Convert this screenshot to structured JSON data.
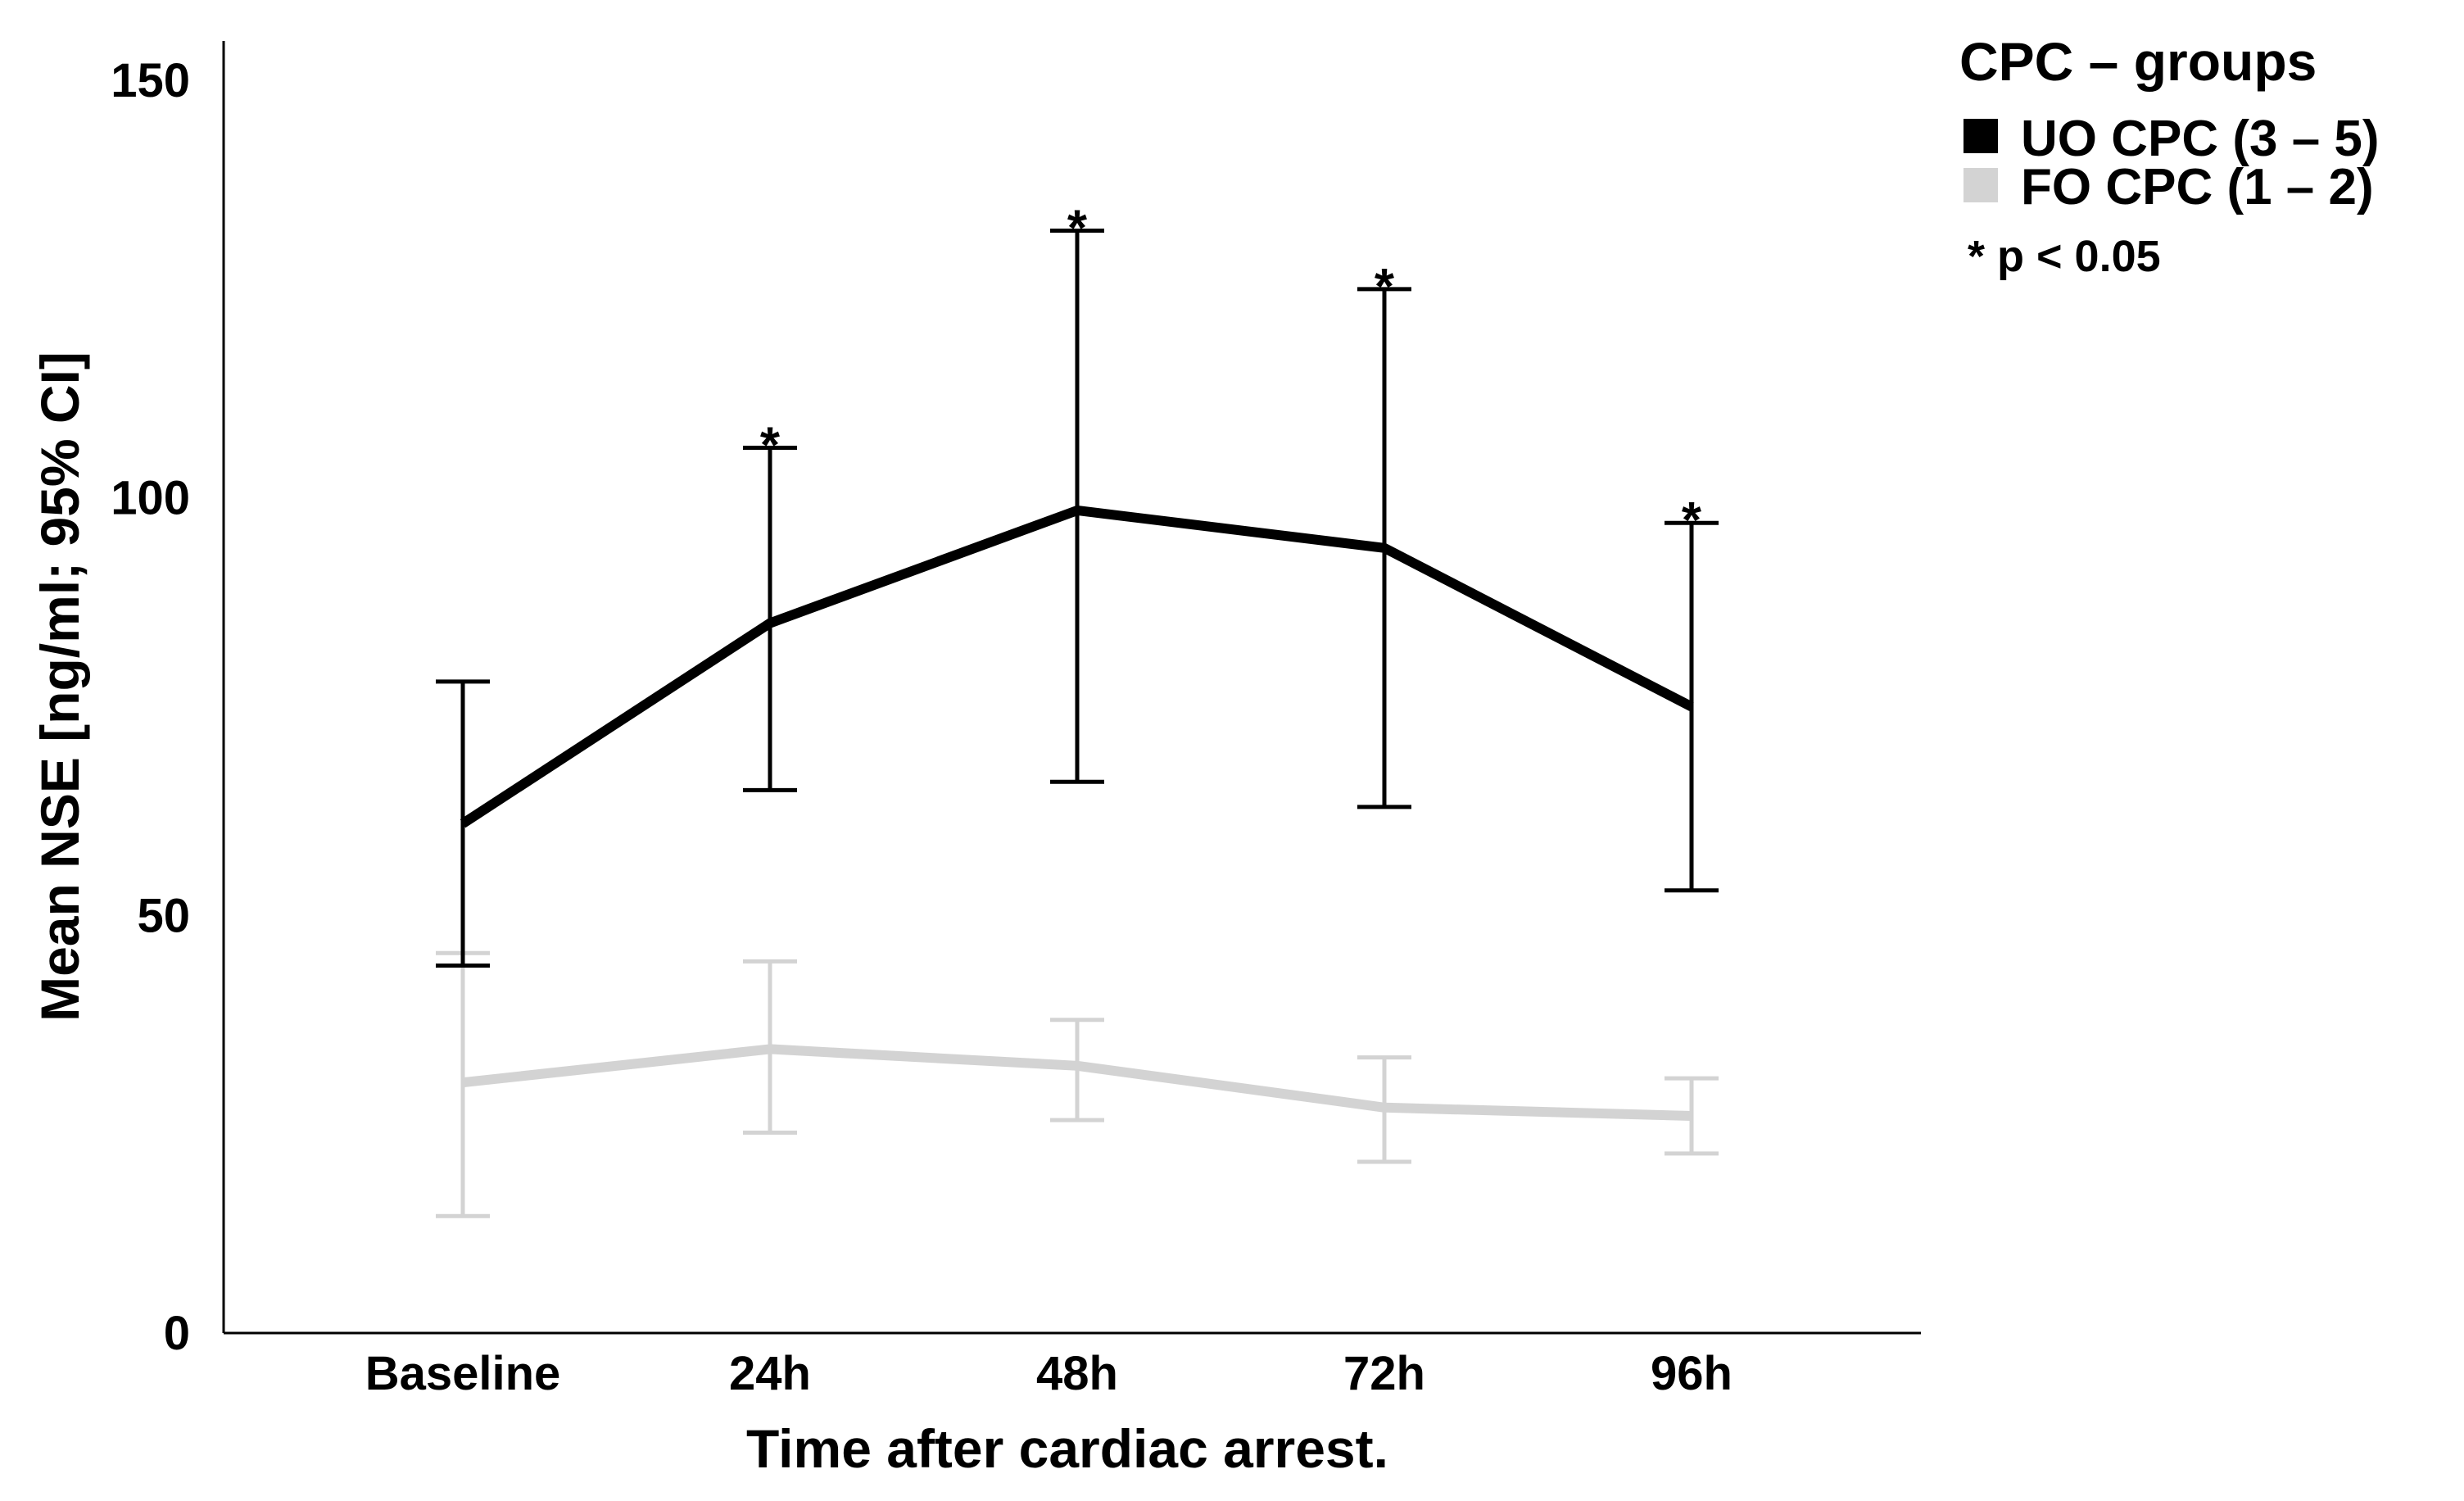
{
  "chart_data": {
    "type": "line",
    "title": "",
    "xlabel": "Time after cardiac arrest.",
    "ylabel": "Mean NSE [ng/ml; 95% CI]",
    "ylim": [
      0,
      155
    ],
    "yticks": [
      0,
      50,
      100,
      150
    ],
    "categories": [
      "Baseline",
      "24h",
      "48h",
      "72h",
      "96h"
    ],
    "series": [
      {
        "name": "UO CPC (3 – 5)",
        "color": "#000000",
        "values": [
          61,
          85,
          98.5,
          94,
          75
        ],
        "ci_low": [
          44,
          65,
          66,
          63,
          53
        ],
        "ci_high": [
          78,
          106,
          132,
          125,
          97
        ]
      },
      {
        "name": "FO CPC (1 – 2)",
        "color": "#d3d3d3",
        "values": [
          30,
          34,
          32,
          27,
          26
        ],
        "ci_low": [
          14,
          24,
          25.5,
          20.5,
          21.5
        ],
        "ci_high": [
          45.5,
          44.5,
          37.5,
          33,
          30.5
        ]
      }
    ],
    "significance_marker": "*",
    "significant_categories": [
      "24h",
      "48h",
      "72h",
      "96h"
    ],
    "legend": {
      "title": "CPC – groups",
      "note": "* p < 0.05",
      "placement": "top-right"
    }
  }
}
